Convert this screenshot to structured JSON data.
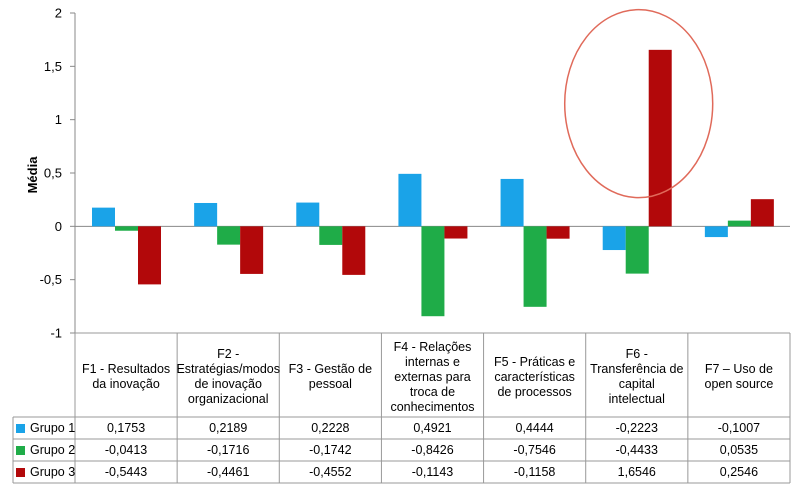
{
  "chart_data": {
    "type": "bar",
    "title": "",
    "xlabel": "",
    "ylabel": "Média",
    "ylim": [
      -1,
      2
    ],
    "yticks": [
      "2",
      "1,5",
      "1",
      "0,5",
      "0",
      "-0,5",
      "-1"
    ],
    "ytick_values": [
      2,
      1.5,
      1,
      0.5,
      0,
      -0.5,
      -1
    ],
    "categories": [
      "F1 - Resultados da inovação",
      "F2 - Estratégias/modos de inovação organizacional",
      "F3 - Gestão de pessoal",
      "F4 - Relações internas e externas para troca de conhecimentos",
      "F5 - Práticas e características de processos",
      "F6 - Transferência de capital intelectual",
      "F7 – Uso de open source"
    ],
    "series": [
      {
        "name": "Grupo 1",
        "color": "#1aa3e8",
        "values": [
          0.1753,
          0.2189,
          0.2228,
          0.4921,
          0.4444,
          -0.2223,
          -0.1007
        ],
        "labels": [
          "0,1753",
          "0,2189",
          "0,2228",
          "0,4921",
          "0,4444",
          "-0,2223",
          "-0,1007"
        ]
      },
      {
        "name": "Grupo 2",
        "color": "#1fac48",
        "values": [
          -0.0413,
          -0.1716,
          -0.1742,
          -0.8426,
          -0.7546,
          -0.4433,
          0.0535
        ],
        "labels": [
          "-0,0413",
          "-0,1716",
          "-0,1742",
          "-0,8426",
          "-0,7546",
          "-0,4433",
          "0,0535"
        ]
      },
      {
        "name": "Grupo 3",
        "color": "#b2080a",
        "values": [
          -0.5443,
          -0.4461,
          -0.4552,
          -0.1143,
          -0.1158,
          1.6546,
          0.2546
        ],
        "labels": [
          "-0,5443",
          "-0,4461",
          "-0,4552",
          "-0,1143",
          "-0,1158",
          "1,6546",
          "0,2546"
        ]
      }
    ],
    "annotations": [
      {
        "type": "ellipse",
        "target": "F6 - Transferência de capital intelectual / Grupo 3",
        "color": "#e06a5a"
      }
    ],
    "data_table": true,
    "legend_position": "table-left"
  }
}
